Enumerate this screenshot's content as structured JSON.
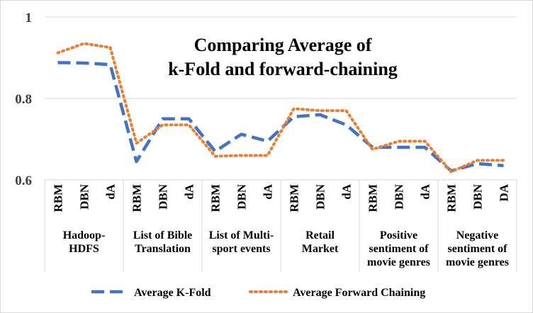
{
  "chart_data": {
    "type": "line",
    "title": "Comparing Average of\nk-Fold and forward-chaining",
    "ylim": [
      0.6,
      1.0
    ],
    "yticks": [
      0.6,
      0.8,
      1
    ],
    "ytick_labels": [
      "0.6",
      "0.8",
      "1"
    ],
    "grid": true,
    "legend_position": "bottom",
    "groups": [
      {
        "label": "Hadoop-\nHDFS",
        "categories": [
          "RBM",
          "DBN",
          "dA"
        ]
      },
      {
        "label": "List of Bible\nTranslation",
        "categories": [
          "RBM",
          "DBN",
          "dA"
        ]
      },
      {
        "label": "List of Multi-\nsport events",
        "categories": [
          "RBM",
          "DBN",
          "dA"
        ]
      },
      {
        "label": "Retail\nMarket",
        "categories": [
          "RBM",
          "DBN",
          "dA"
        ]
      },
      {
        "label": "Positive\nsentiment of\nmovie genres",
        "categories": [
          "RBM",
          "DBN",
          "dA"
        ]
      },
      {
        "label": "Negative\nsentiment of\nmovie genres",
        "categories": [
          "RBM",
          "DBN",
          "DA"
        ]
      }
    ],
    "series": [
      {
        "name": "Average K-Fold",
        "color": "#4472c4",
        "style": "dashed",
        "values": [
          0.888,
          0.887,
          0.883,
          0.645,
          0.75,
          0.75,
          0.67,
          0.712,
          0.695,
          0.755,
          0.76,
          0.735,
          0.68,
          0.68,
          0.68,
          0.622,
          0.64,
          0.635
        ]
      },
      {
        "name": "Average Forward Chaining",
        "color": "#ed7d31",
        "style": "dotted",
        "values": [
          0.912,
          0.935,
          0.925,
          0.69,
          0.735,
          0.735,
          0.658,
          0.66,
          0.66,
          0.775,
          0.77,
          0.77,
          0.675,
          0.695,
          0.695,
          0.62,
          0.648,
          0.648
        ]
      }
    ]
  }
}
